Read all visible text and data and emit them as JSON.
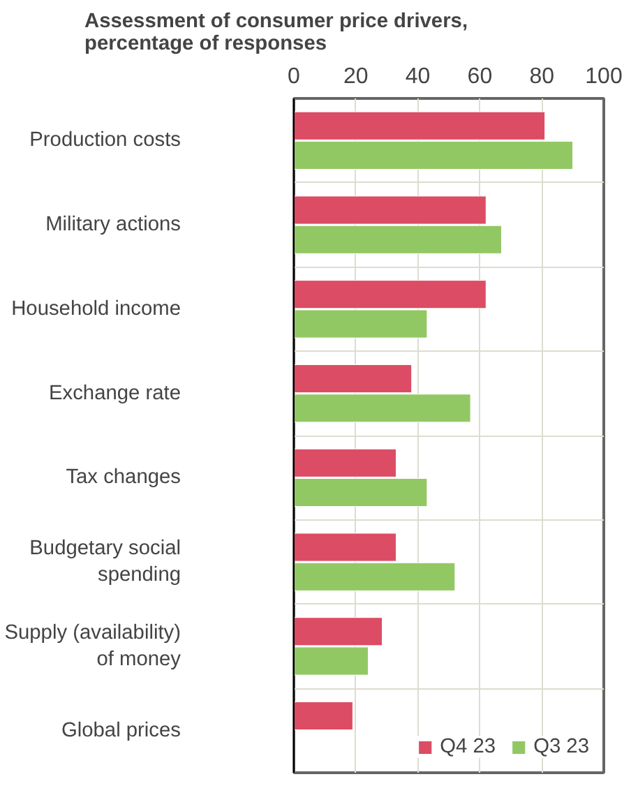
{
  "chart_data": {
    "type": "bar",
    "orientation": "horizontal",
    "title": "Assessment of consumer price drivers, percentage of responses",
    "categories": [
      "Production costs",
      "Military actions",
      "Household income",
      "Exchange rate",
      "Tax changes",
      "Budgetary social spending",
      "Supply (availability) of money",
      "Global prices"
    ],
    "series": [
      {
        "name": "Q4 23",
        "color": "#dc4c64",
        "values": [
          81,
          62,
          62,
          38,
          33,
          33,
          28.5,
          19
        ]
      },
      {
        "name": "Q3 23",
        "color": "#92c864",
        "values": [
          90,
          67,
          43,
          57,
          43,
          52,
          24,
          null
        ]
      }
    ],
    "xlim": [
      0,
      100
    ],
    "xticks": [
      0,
      20,
      40,
      60,
      80,
      100
    ],
    "grid": true,
    "legend": "bottom right"
  }
}
